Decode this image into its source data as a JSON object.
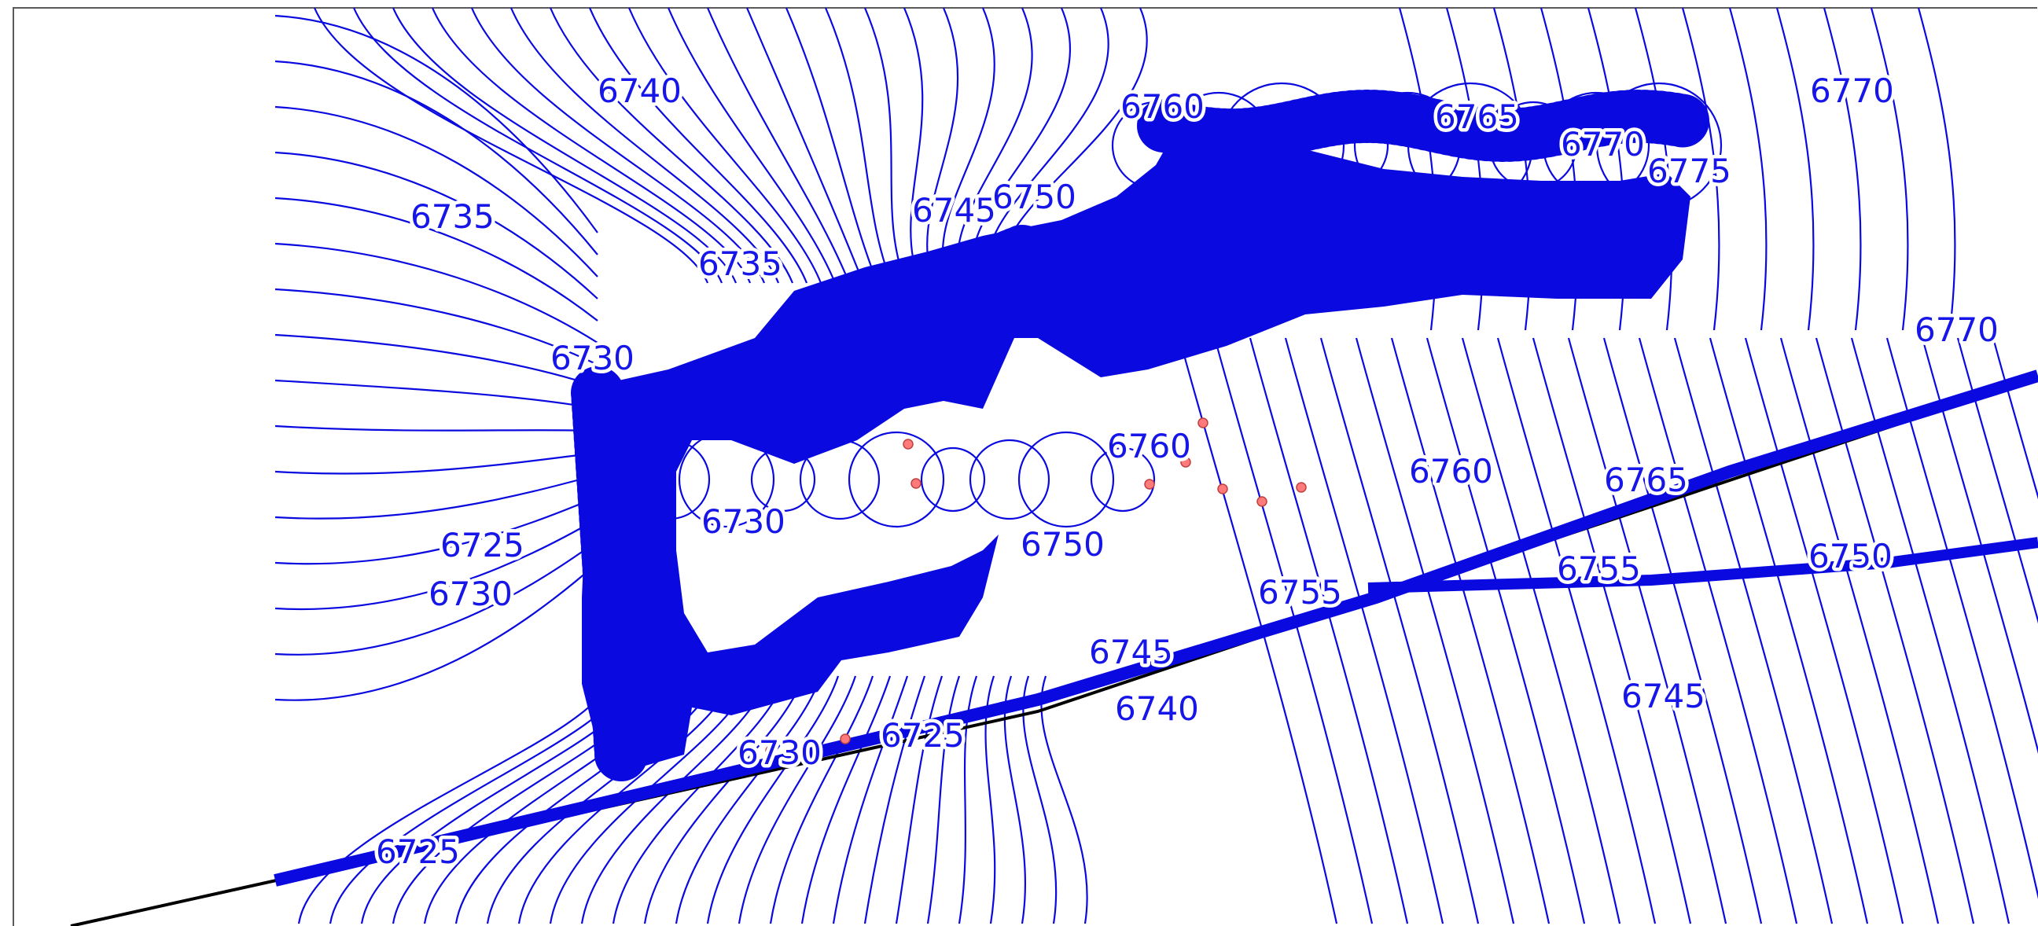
{
  "title": "",
  "colors": {
    "contour": "#0a0ae0",
    "boundary": "#000000",
    "frame": "#5a5a5a",
    "sample_point": "#ff7a7a"
  },
  "contour_labels": [
    "6740",
    "6735",
    "6735",
    "6730",
    "6725",
    "6730",
    "6745",
    "6750",
    "6760",
    "6765",
    "6770",
    "6770",
    "6775",
    "6770",
    "6760",
    "6765",
    "6760",
    "6755",
    "6745",
    "6740",
    "6745",
    "6750",
    "6730",
    "6725",
    "6755",
    "6750",
    "6730",
    "6725"
  ]
}
